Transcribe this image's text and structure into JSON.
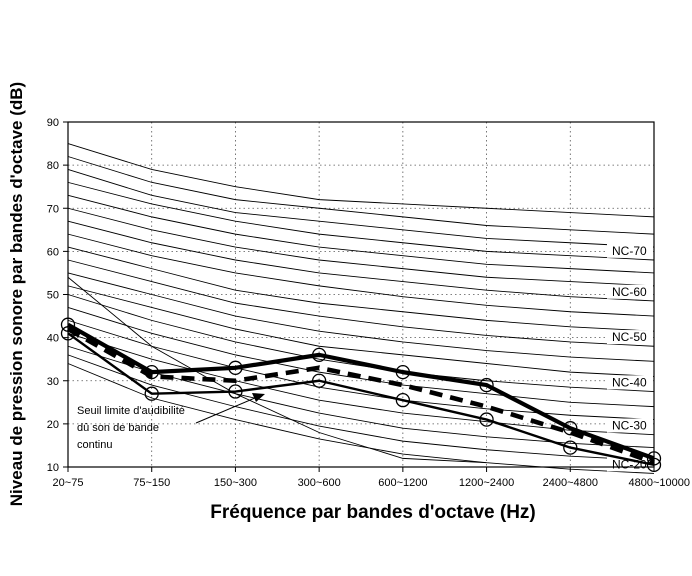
{
  "chart_data": {
    "type": "line",
    "xlabel": "Fréquence par bandes d'octave (Hz)",
    "ylabel": "Niveau de pression sonore par bandes d'octave (dB)",
    "categories": [
      "20~75",
      "75~150",
      "150~300",
      "300~600",
      "600~1200",
      "1200~2400",
      "2400~4800",
      "4800~10000"
    ],
    "ylim": [
      10,
      90
    ],
    "yticks": [
      10,
      20,
      30,
      40,
      50,
      60,
      70,
      80,
      90
    ],
    "grid": "dotted at each category and every 10 dB",
    "nc_curves": [
      {
        "name": "",
        "values": [
          85,
          79,
          75,
          72,
          71,
          70,
          69,
          68
        ]
      },
      {
        "name": "",
        "values": [
          82,
          76,
          72,
          70,
          68,
          66,
          65,
          64
        ]
      },
      {
        "name": "",
        "values": [
          79,
          73,
          69,
          67,
          65,
          63,
          62,
          61
        ]
      },
      {
        "name": "NC-70",
        "values": [
          76,
          71,
          67,
          64,
          62,
          60,
          59,
          58
        ]
      },
      {
        "name": "",
        "values": [
          73,
          68,
          64,
          61,
          59,
          57,
          56,
          55
        ]
      },
      {
        "name": "",
        "values": [
          70,
          65,
          61,
          58,
          56,
          54,
          53,
          52
        ]
      },
      {
        "name": "NC-60",
        "values": [
          67,
          62,
          58,
          55,
          53,
          51,
          49.5,
          48.5
        ]
      },
      {
        "name": "",
        "values": [
          64,
          59,
          55,
          52,
          49.5,
          47.5,
          46,
          45
        ]
      },
      {
        "name": "",
        "values": [
          61,
          56,
          51,
          48,
          46,
          44,
          42.5,
          41.5
        ]
      },
      {
        "name": "NC-50",
        "values": [
          58,
          53,
          48,
          45,
          42.5,
          40.5,
          39,
          38
        ]
      },
      {
        "name": "",
        "values": [
          55,
          50,
          45,
          41.5,
          39,
          37,
          35.5,
          34.5
        ]
      },
      {
        "name": "",
        "values": [
          52,
          47,
          42,
          38,
          36,
          34,
          32,
          31
        ]
      },
      {
        "name": "NC-40",
        "values": [
          50,
          44,
          39,
          35,
          32,
          30,
          28.5,
          27.5
        ]
      },
      {
        "name": "",
        "values": [
          47,
          41,
          36,
          32,
          29,
          27,
          25,
          24
        ]
      },
      {
        "name": "",
        "values": [
          44,
          38,
          33,
          28.5,
          25.5,
          23.5,
          22,
          21
        ]
      },
      {
        "name": "NC-30",
        "values": [
          41,
          35,
          30,
          25.5,
          22.5,
          20.5,
          18.5,
          17.5
        ]
      },
      {
        "name": "",
        "values": [
          38,
          32,
          27,
          22.5,
          19,
          17,
          15.5,
          14.5
        ]
      },
      {
        "name": "",
        "values": [
          36,
          29,
          24,
          19.5,
          16,
          14,
          12.5,
          11.5
        ]
      },
      {
        "name": "NC-20",
        "values": [
          34,
          26,
          21,
          16.5,
          13,
          11,
          9.5,
          8.5
        ]
      }
    ],
    "threshold_curve": [
      54,
      38,
      27,
      18,
      12,
      11
    ],
    "series": [
      {
        "name": "",
        "style": "thick-solid",
        "values": [
          43,
          32,
          33,
          36,
          32,
          29,
          19,
          12
        ]
      },
      {
        "name": "",
        "style": "thick-dashed",
        "values": [
          42,
          31,
          30,
          33,
          29,
          24,
          18,
          11
        ]
      },
      {
        "name": "",
        "style": "medium-solid",
        "values": [
          41,
          27,
          27.5,
          30,
          25.5,
          21,
          14.5,
          10.5
        ]
      }
    ],
    "annotations": {
      "threshold_lines": [
        "Seuil limite d'audibilité",
        "dû son de bande",
        "continu"
      ]
    },
    "colors": {
      "line": "#000000",
      "grid": "#555555"
    }
  }
}
